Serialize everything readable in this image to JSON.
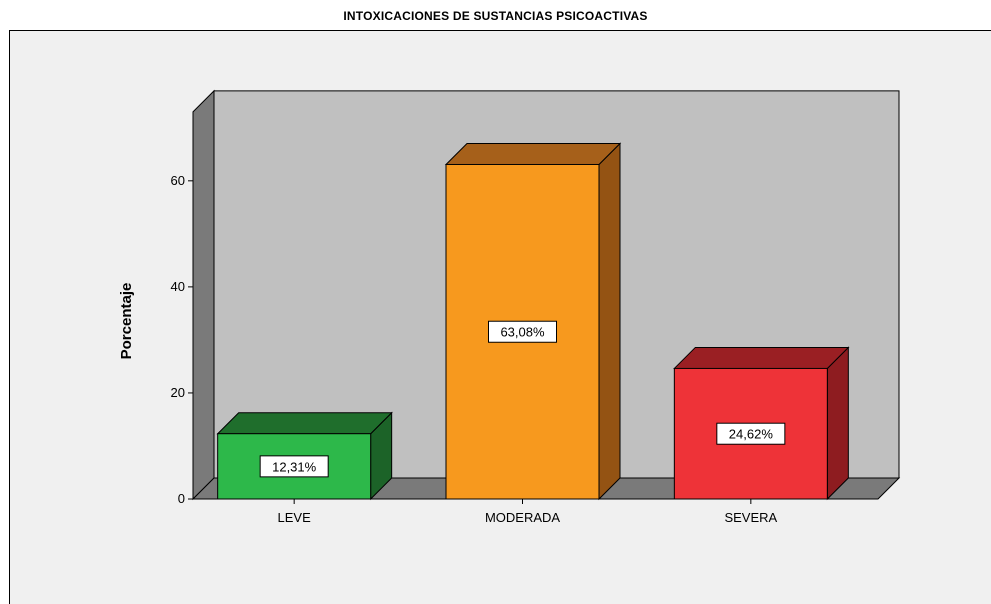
{
  "chart_data": {
    "type": "bar",
    "title": "INTOXICACIONES DE SUSTANCIAS PSICOACTIVAS",
    "ylabel": "Porcentaje",
    "xlabel": "",
    "categories": [
      "LEVE",
      "MODERADA",
      "SEVERA"
    ],
    "values": [
      12.31,
      63.08,
      24.62
    ],
    "data_labels": [
      "12,31%",
      "63,08%",
      "24,62%"
    ],
    "ylim": [
      0,
      73
    ],
    "yticks": [
      0,
      20,
      40,
      60
    ],
    "ytick_labels": [
      "0",
      "20",
      "40",
      "60"
    ],
    "grid": false,
    "legend": "none",
    "style": "3d",
    "colors": {
      "bars": [
        "#2db84a",
        "#f7991e",
        "#ee3338"
      ],
      "bar_tops": [
        "#1f6e2c",
        "#a6601a",
        "#9a1f23"
      ],
      "bar_sides": [
        "#1c6328",
        "#945313",
        "#8e1c20"
      ],
      "back_wall": "#c0c0c0",
      "side_wall": "#7a7a7a",
      "floor": "#7a7a7a",
      "background": "#f0f0f0"
    }
  }
}
